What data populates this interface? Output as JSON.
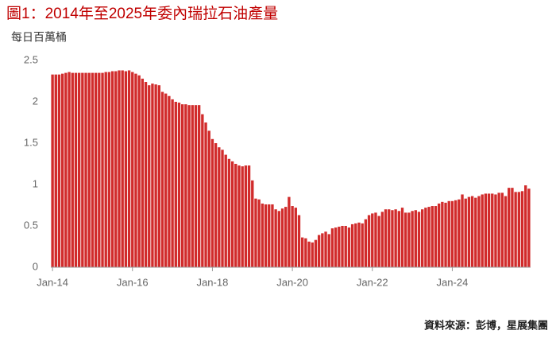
{
  "chart_data": {
    "type": "bar",
    "title": "圖1：2014年至2025年委內瑞拉石油產量",
    "y_label": "每日百萬桶",
    "source": "資料來源：彭博，星展集團",
    "color": "#d12b2b",
    "ylim": [
      0,
      2.5
    ],
    "yticks": [
      0,
      0.5,
      1,
      1.5,
      2,
      2.5
    ],
    "categories": [
      "Jan-14",
      null,
      null,
      null,
      null,
      null,
      null,
      null,
      null,
      null,
      null,
      null,
      null,
      null,
      null,
      null,
      null,
      null,
      null,
      null,
      null,
      null,
      null,
      null,
      "Jan-16",
      null,
      null,
      null,
      null,
      null,
      null,
      null,
      null,
      null,
      null,
      null,
      null,
      null,
      null,
      null,
      null,
      null,
      null,
      null,
      null,
      null,
      null,
      null,
      "Jan-18",
      null,
      null,
      null,
      null,
      null,
      null,
      null,
      null,
      null,
      null,
      null,
      null,
      null,
      null,
      null,
      null,
      null,
      null,
      null,
      null,
      null,
      null,
      null,
      "Jan-20",
      null,
      null,
      null,
      null,
      null,
      null,
      null,
      null,
      null,
      null,
      null,
      null,
      null,
      null,
      null,
      null,
      null,
      null,
      null,
      null,
      null,
      null,
      null,
      "Jan-22",
      null,
      null,
      null,
      null,
      null,
      null,
      null,
      null,
      null,
      null,
      null,
      null,
      null,
      null,
      null,
      null,
      null,
      null,
      null,
      null,
      null,
      null,
      null,
      "Jan-24",
      null,
      null,
      null,
      null,
      null,
      null,
      null,
      null,
      null,
      null,
      null,
      null,
      null,
      null,
      null,
      null,
      null,
      null,
      null,
      null,
      null,
      null,
      null
    ],
    "values": [
      2.33,
      2.33,
      2.33,
      2.34,
      2.35,
      2.36,
      2.35,
      2.35,
      2.35,
      2.35,
      2.35,
      2.35,
      2.35,
      2.35,
      2.35,
      2.35,
      2.36,
      2.36,
      2.37,
      2.37,
      2.38,
      2.38,
      2.37,
      2.38,
      2.36,
      2.34,
      2.32,
      2.28,
      2.24,
      2.2,
      2.22,
      2.21,
      2.2,
      2.12,
      2.1,
      2.07,
      2.03,
      2.0,
      1.99,
      1.97,
      1.97,
      1.96,
      1.96,
      1.96,
      1.96,
      1.85,
      1.75,
      1.65,
      1.55,
      1.5,
      1.45,
      1.42,
      1.36,
      1.31,
      1.28,
      1.25,
      1.23,
      1.22,
      1.23,
      1.23,
      1.05,
      0.83,
      0.82,
      0.77,
      0.76,
      0.76,
      0.76,
      0.7,
      0.68,
      0.71,
      0.73,
      0.85,
      0.74,
      0.72,
      0.63,
      0.36,
      0.35,
      0.31,
      0.3,
      0.33,
      0.39,
      0.41,
      0.43,
      0.4,
      0.47,
      0.48,
      0.49,
      0.5,
      0.5,
      0.48,
      0.52,
      0.53,
      0.54,
      0.53,
      0.58,
      0.63,
      0.65,
      0.66,
      0.62,
      0.67,
      0.7,
      0.7,
      0.69,
      0.7,
      0.68,
      0.72,
      0.66,
      0.66,
      0.68,
      0.69,
      0.67,
      0.7,
      0.72,
      0.73,
      0.74,
      0.74,
      0.77,
      0.79,
      0.78,
      0.8,
      0.8,
      0.81,
      0.82,
      0.88,
      0.83,
      0.85,
      0.86,
      0.84,
      0.86,
      0.88,
      0.89,
      0.89,
      0.89,
      0.88,
      0.9,
      0.9,
      0.86,
      0.96,
      0.96,
      0.91,
      0.91,
      0.92,
      0.99,
      0.95
    ]
  }
}
